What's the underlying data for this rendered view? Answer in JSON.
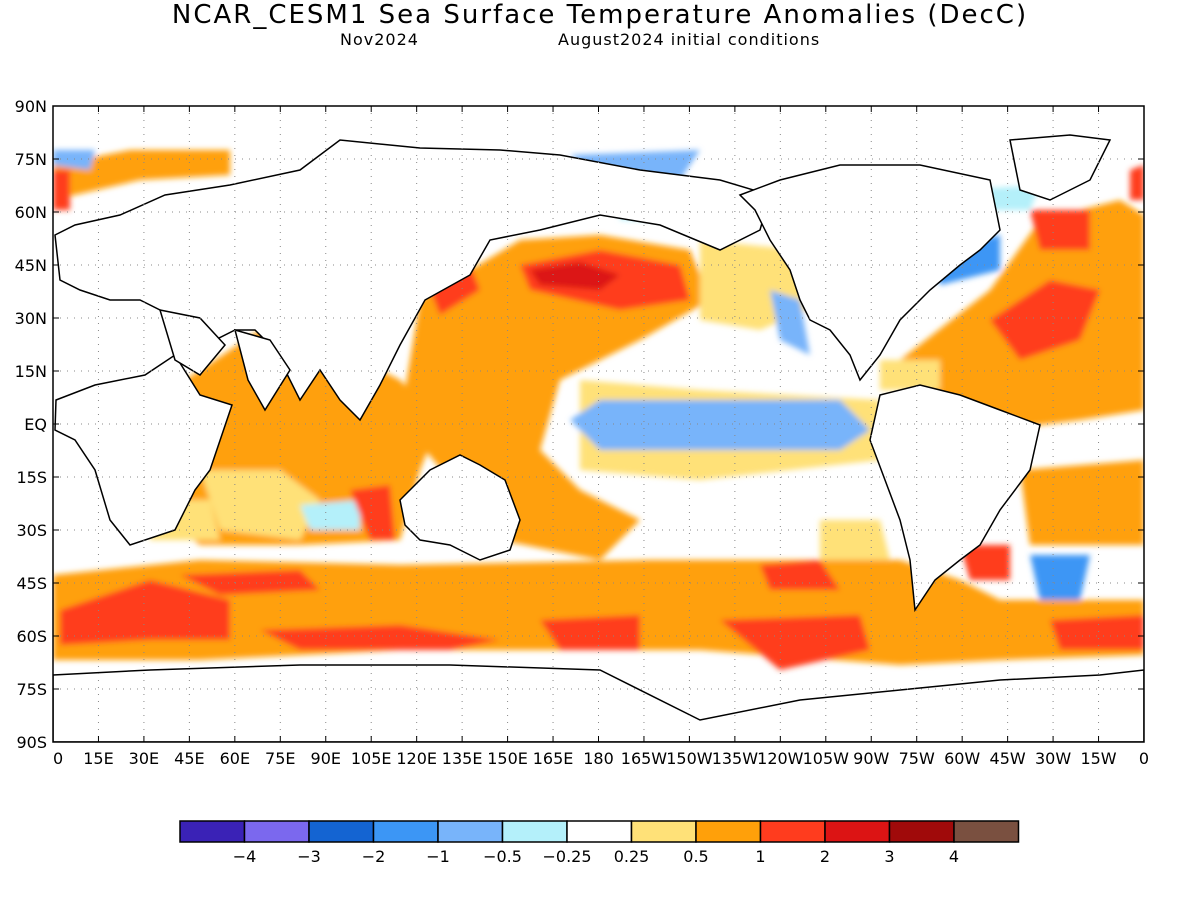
{
  "header": {
    "title": "NCAR_CESM1 Sea Surface Temperature Anomalies (DecC)",
    "month": "Nov2024",
    "init": "August2024 initial conditions"
  },
  "map": {
    "lat_labels": [
      "90N",
      "75N",
      "60N",
      "45N",
      "30N",
      "15N",
      "EQ",
      "15S",
      "30S",
      "45S",
      "60S",
      "75S",
      "90S"
    ],
    "lon_labels": [
      "0",
      "15E",
      "30E",
      "45E",
      "60E",
      "75E",
      "90E",
      "105E",
      "120E",
      "135E",
      "150E",
      "165E",
      "180",
      "165W",
      "150W",
      "135W",
      "120W",
      "105W",
      "90W",
      "75W",
      "60W",
      "45W",
      "30W",
      "15W",
      "0"
    ]
  },
  "colorbar": {
    "colors": [
      "#3a22b6",
      "#7b68ee",
      "#1464d2",
      "#3c96f5",
      "#78b4fa",
      "#b4f0fa",
      "#ffffff",
      "#ffe178",
      "#ffa00a",
      "#ff3c1e",
      "#dc1414",
      "#a00a0a",
      "#7a5040"
    ],
    "labels": [
      "-4",
      "-3",
      "-2",
      "-1",
      "-0.5",
      "-0.25",
      "0.25",
      "0.5",
      "1",
      "2",
      "3",
      "4"
    ]
  }
}
